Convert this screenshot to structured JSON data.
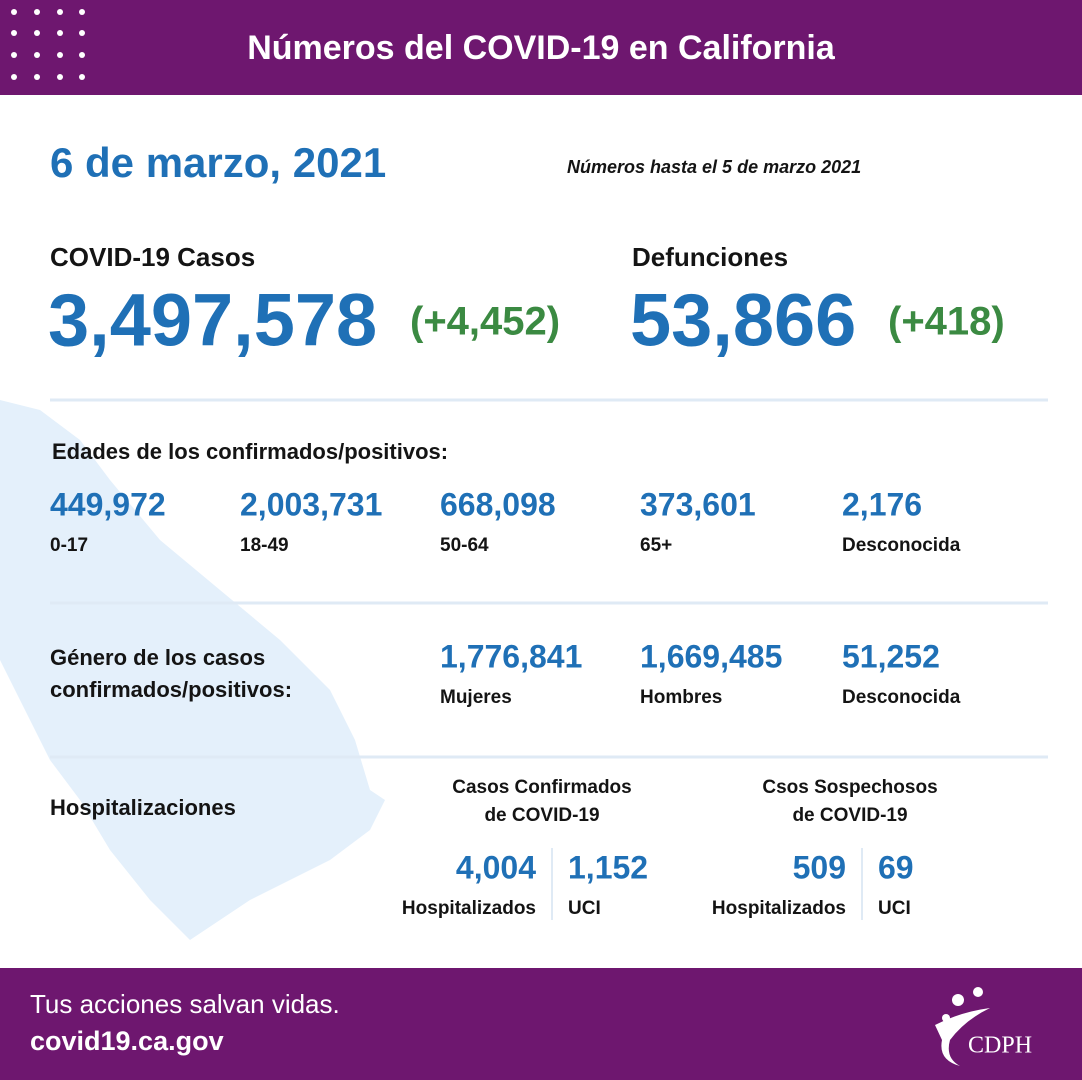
{
  "header": {
    "title": "Números del COVID-19 en California"
  },
  "date": "6 de marzo, 2021",
  "note": "Números hasta el 5 de marzo 2021",
  "cases": {
    "label": "COVID-19 Casos",
    "value": "3,497,578",
    "change": "(+4,452)"
  },
  "deaths": {
    "label": "Defunciones",
    "value": "53,866",
    "change": "(+418)"
  },
  "ages": {
    "label": "Edades de los confirmados/positivos:",
    "items": [
      {
        "value": "449,972",
        "label": "0-17"
      },
      {
        "value": "2,003,731",
        "label": "18-49"
      },
      {
        "value": "668,098",
        "label": "50-64"
      },
      {
        "value": "373,601",
        "label": "65+"
      },
      {
        "value": "2,176",
        "label": "Desconocida"
      }
    ]
  },
  "gender": {
    "label": [
      "Género de los casos",
      "confirmados/positivos:"
    ],
    "items": [
      {
        "value": "1,776,841",
        "label": "Mujeres"
      },
      {
        "value": "1,669,485",
        "label": "Hombres"
      },
      {
        "value": "51,252",
        "label": "Desconocida"
      }
    ]
  },
  "hospital": {
    "label": "Hospitalizaciones",
    "groups": [
      {
        "title": [
          "Casos Confirmados",
          "de COVID-19"
        ],
        "items": [
          {
            "value": "4,004",
            "label": "Hospitalizados"
          },
          {
            "value": "1,152",
            "label": "UCI"
          }
        ]
      },
      {
        "title": [
          "Csos Sospechosos",
          "de COVID-19"
        ],
        "items": [
          {
            "value": "509",
            "label": "Hospitalizados"
          },
          {
            "value": "69",
            "label": "UCI"
          }
        ]
      }
    ]
  },
  "footer": {
    "tagline": "Tus acciones salvan vidas.",
    "url": "covid19.ca.gov",
    "logo": "CDPH"
  }
}
